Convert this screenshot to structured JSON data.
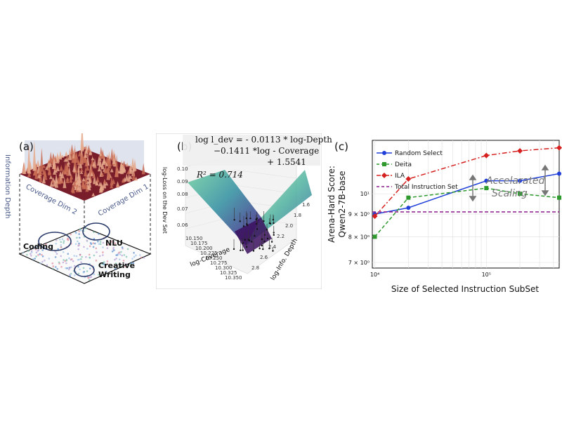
{
  "panel_a": {
    "label": "(a)",
    "z_axis_label": "Information Depth",
    "x_axis_label": "Coverage Dim 2",
    "y_axis_label": "Coverage Dim 1",
    "clusters": [
      "Coding",
      "NLU",
      "Creative",
      "Writing"
    ]
  },
  "panel_b": {
    "label": "(b)",
    "equation": {
      "line1": "log l_dev = - 0.0113 * log-Depth",
      "line2": "−0.1411 *log - Coverage",
      "line3": "+ 1.5541",
      "r2": "R² = 0.714"
    },
    "z_label": "log-Loss on the Dev Set",
    "x_label": "log-Coverage",
    "y_label": "log-Info. Depth",
    "z_ticks": [
      "0.10",
      "0.09",
      "0.08",
      "0.07",
      "0.06"
    ],
    "x_ticks": [
      "10.150",
      "10.175",
      "10.200",
      "10.225",
      "10.250",
      "10.275",
      "10.300",
      "10.325",
      "10.350"
    ],
    "y_ticks": [
      "1.6",
      "1.8",
      "2.0",
      "2.2",
      "2.4",
      "2.6",
      "2.8"
    ]
  },
  "panel_c": {
    "label": "(c)",
    "annotation_line1": "Accelarated",
    "annotation_line2": "Scaling"
  },
  "chart_data": {
    "type": "line",
    "xlabel": "Size of Selected Instruction SubSet",
    "ylabel_line1": "Arena-Hard Score:",
    "ylabel_line2": "Qwen2-7B-base",
    "xscale": "log",
    "yscale": "log",
    "xlim": [
      9500,
      450000
    ],
    "ylim": [
      6.8,
      13.2
    ],
    "x": [
      10000,
      20000,
      100000,
      200000,
      450000
    ],
    "x_ticks": [
      {
        "v": 10000,
        "label": "10⁴"
      },
      {
        "v": 100000,
        "label": "10⁵"
      }
    ],
    "y_ticks": [
      {
        "v": 7,
        "label": "7 × 10⁰"
      },
      {
        "v": 8,
        "label": "8 × 10⁰"
      },
      {
        "v": 9,
        "label": "9 × 10⁰"
      },
      {
        "v": 10,
        "label": "10¹"
      }
    ],
    "series": [
      {
        "name": "Random Select",
        "color": "#1f3fd8",
        "dash": "solid",
        "marker": "circle",
        "values": [
          9.0,
          9.3,
          10.7,
          10.7,
          11.1
        ]
      },
      {
        "name": "Deita",
        "color": "#2e9a2e",
        "dash": "dashed",
        "marker": "square",
        "values": [
          8.0,
          9.8,
          10.3,
          10.0,
          9.8
        ]
      },
      {
        "name": "ILA",
        "color": "#d62020",
        "dash": "dashdot",
        "marker": "diamond",
        "values": [
          8.9,
          10.8,
          12.2,
          12.5,
          12.7
        ]
      },
      {
        "name": "Total Instruction Set",
        "color": "#8b1a8b",
        "dash": "dashed",
        "marker": "none",
        "values": [
          9.1,
          9.1,
          9.1,
          9.1,
          9.1
        ]
      }
    ],
    "legend": "top-left",
    "grid": true
  }
}
